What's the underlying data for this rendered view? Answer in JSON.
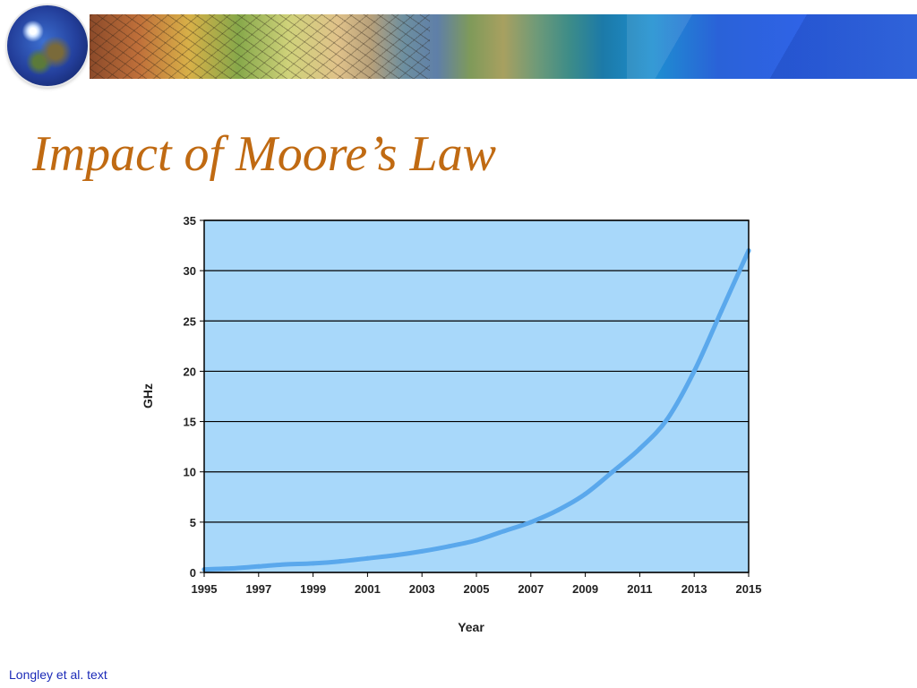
{
  "slide": {
    "title": "Impact of Moore’s Law",
    "footer": "Longley et al. text"
  },
  "chart_data": {
    "type": "line",
    "title": "",
    "xlabel": "Year",
    "ylabel": "GHz",
    "xlim": [
      1995,
      2015
    ],
    "ylim": [
      0,
      35
    ],
    "x_ticks": [
      "1995",
      "1997",
      "1999",
      "2001",
      "2003",
      "2005",
      "2007",
      "2009",
      "2011",
      "2013",
      "2015"
    ],
    "y_ticks": [
      "0",
      "5",
      "10",
      "15",
      "20",
      "25",
      "30",
      "35"
    ],
    "grid": true,
    "legend": "none",
    "plot_background": "#a8d8fa",
    "series": [
      {
        "color": "#5aa8ec",
        "x": [
          1995,
          1996,
          1997,
          1998,
          1999,
          2000,
          2001,
          2002,
          2003,
          2004,
          2005,
          2006,
          2007,
          2008,
          2009,
          2010,
          2011,
          2012,
          2013,
          2014,
          2015
        ],
        "y": [
          0.3,
          0.4,
          0.6,
          0.8,
          0.9,
          1.1,
          1.4,
          1.7,
          2.1,
          2.6,
          3.2,
          4.1,
          5.0,
          6.2,
          7.8,
          10.0,
          12.3,
          15.2,
          20.0,
          26.0,
          32.0
        ]
      }
    ]
  }
}
